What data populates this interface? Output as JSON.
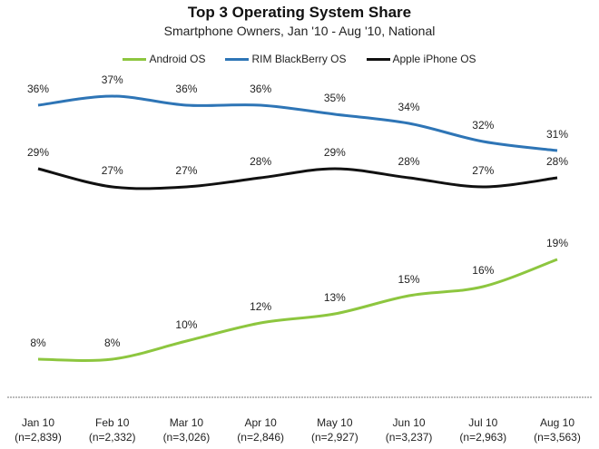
{
  "chart_data": {
    "type": "line",
    "title": "Top 3 Operating System Share",
    "subtitle": "Smartphone Owners, Jan '10 - Aug '10, National",
    "categories": [
      "Jan 10",
      "Feb 10",
      "Mar 10",
      "Apr 10",
      "May 10",
      "Jun 10",
      "Jul 10",
      "Aug 10"
    ],
    "sample_sizes": [
      "(n=2,839)",
      "(n=2,332)",
      "(n=3,026)",
      "(n=2,846)",
      "(n=2,927)",
      "(n=3,237)",
      "(n=2,963)",
      "(n=3,563)"
    ],
    "ylim": [
      4,
      44
    ],
    "grid": false,
    "legend_position": "top-center",
    "series": [
      {
        "name": "Android OS",
        "color": "#8dc63f",
        "values": [
          8,
          8,
          10,
          12,
          13,
          15,
          16,
          19
        ]
      },
      {
        "name": "RIM BlackBerry OS",
        "color": "#2e75b6",
        "values": [
          36,
          37,
          36,
          36,
          35,
          34,
          32,
          31
        ]
      },
      {
        "name": "Apple iPhone OS",
        "color": "#111111",
        "values": [
          29,
          27,
          27,
          28,
          29,
          28,
          27,
          28
        ]
      }
    ]
  }
}
